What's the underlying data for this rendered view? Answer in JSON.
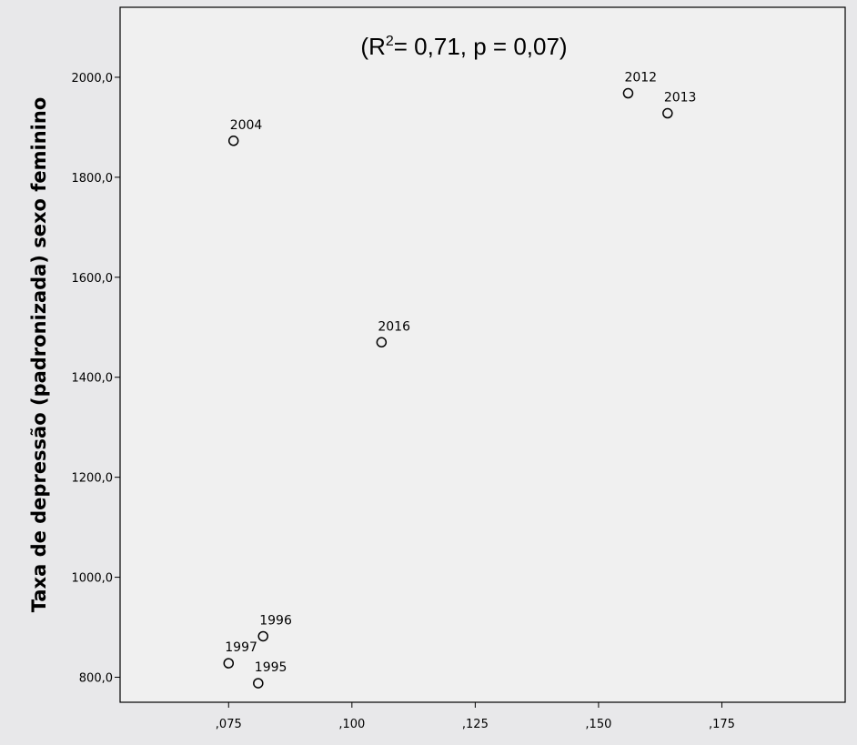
{
  "chart_data": {
    "type": "scatter",
    "title": "",
    "annotation": {
      "prefix": "(R",
      "superscript": "2",
      "suffix": "= 0,71, p = 0,07)"
    },
    "xlabel": "",
    "ylabel": "Taxa de depressão (padronizada) sexo feminino",
    "xlim": [
      0.053,
      0.2
    ],
    "ylim": [
      750,
      2140
    ],
    "x_ticks": [
      {
        "value": 0.075,
        "label": ",075"
      },
      {
        "value": 0.1,
        "label": ",100"
      },
      {
        "value": 0.125,
        "label": ",125"
      },
      {
        "value": 0.15,
        "label": ",150"
      },
      {
        "value": 0.175,
        "label": ",175"
      }
    ],
    "y_ticks": [
      {
        "value": 800,
        "label": "800,0"
      },
      {
        "value": 1000,
        "label": "1000,0"
      },
      {
        "value": 1200,
        "label": "1200,0"
      },
      {
        "value": 1400,
        "label": "1400,0"
      },
      {
        "value": 1600,
        "label": "1600,0"
      },
      {
        "value": 1800,
        "label": "1800,0"
      },
      {
        "value": 2000,
        "label": "2000,0"
      }
    ],
    "grid": false,
    "points": [
      {
        "label": "1995",
        "x": 0.081,
        "y": 788
      },
      {
        "label": "1996",
        "x": 0.082,
        "y": 882
      },
      {
        "label": "1997",
        "x": 0.075,
        "y": 828
      },
      {
        "label": "2004",
        "x": 0.076,
        "y": 1873
      },
      {
        "label": "2012",
        "x": 0.156,
        "y": 1968
      },
      {
        "label": "2013",
        "x": 0.164,
        "y": 1928
      },
      {
        "label": "2016",
        "x": 0.106,
        "y": 1470
      }
    ],
    "colors": {
      "plot_background": "#f0f0f0",
      "page_background": "#e8e8ea",
      "marker_stroke": "#000000"
    }
  }
}
